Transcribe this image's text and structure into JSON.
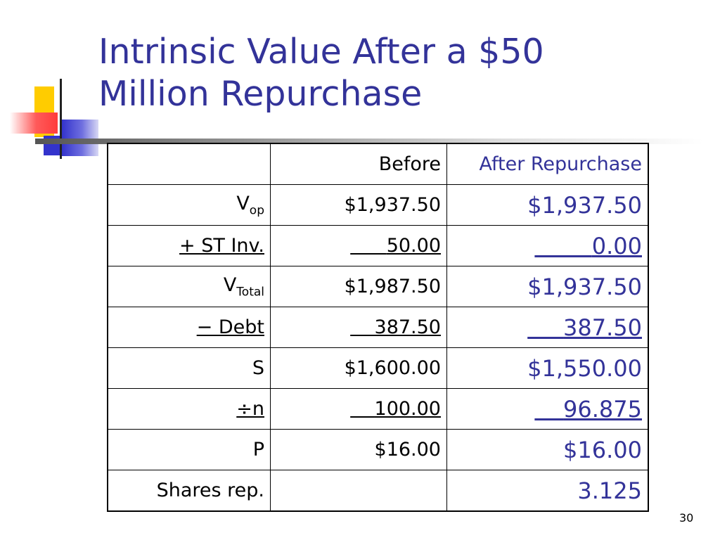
{
  "slide": {
    "title_line1": "Intrinsic Value After a $50",
    "title_line2": "Million Repurchase",
    "page_number": "30",
    "accent_color": "#333399"
  },
  "table": {
    "headers": [
      "",
      "Before",
      "After Repurchase"
    ],
    "rows": [
      {
        "label_main": "V",
        "label_sub": "op",
        "before": "$1,937.50",
        "after": "$1,937.50"
      },
      {
        "label": "+ ST Inv.",
        "before_pad": "      ",
        "before": "50.00",
        "after_pad": "        ",
        "after": "0.00"
      },
      {
        "label_main": "V",
        "label_sub": "Total",
        "before": "$1,987.50",
        "after": "$1,937.50"
      },
      {
        "label": "− Debt",
        "before_pad": "    ",
        "before": "387.50",
        "after_pad": "     ",
        "after": "387.50"
      },
      {
        "label": "S",
        "before": "$1,600.00",
        "after": "$1,550.00"
      },
      {
        "label": "÷n",
        "before_pad": "    ",
        "before": "100.00",
        "after_pad": "    ",
        "after": "96.875"
      },
      {
        "label": "P",
        "before": "$16.00",
        "after": "$16.00"
      },
      {
        "label": "Shares rep.",
        "before": "",
        "after": "3.125"
      }
    ]
  }
}
